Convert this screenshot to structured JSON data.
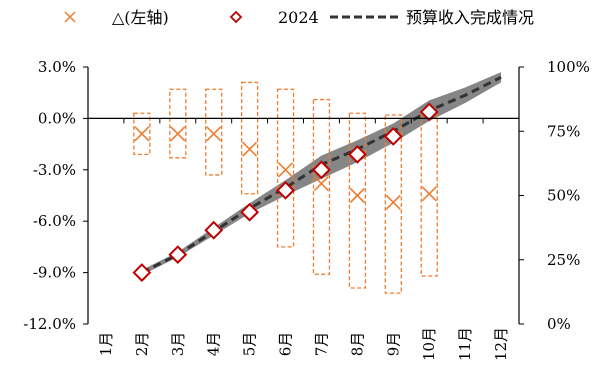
{
  "chart_data": {
    "type": "line",
    "title": "",
    "categories": [
      "1月",
      "2月",
      "3月",
      "4月",
      "5月",
      "6月",
      "7月",
      "8月",
      "9月",
      "10月",
      "11月",
      "12月"
    ],
    "left_axis": {
      "ylim": [
        -12,
        3
      ],
      "ticks": [
        3,
        0,
        -3,
        -6,
        -9,
        -12
      ],
      "tick_labels": [
        "3.0%",
        "0.0%",
        "-3.0%",
        "-6.0%",
        "-9.0%",
        "-12.0%"
      ]
    },
    "right_axis": {
      "ylim": [
        0,
        100
      ],
      "ticks": [
        100,
        75,
        50,
        25,
        0
      ],
      "tick_labels": [
        "100%",
        "75%",
        "50%",
        "25%",
        "0%"
      ]
    },
    "legend": {
      "placement": "top",
      "entries": [
        {
          "label": "",
          "marker": "x",
          "color": "#ED7D31"
        },
        {
          "label": "△(左轴)",
          "marker": "none",
          "color": "#000000"
        },
        {
          "label": "2024",
          "marker": "diamond",
          "color": "#C00000"
        },
        {
          "label": "预算收入完成情况",
          "marker": "dashed-line",
          "color": "#333333"
        }
      ]
    },
    "series": [
      {
        "name": "△(左轴)",
        "axis": "left",
        "marker": "x",
        "color": "#ED7D31",
        "x": [
          "2月",
          "3月",
          "4月",
          "5月",
          "6月",
          "7月",
          "8月",
          "9月",
          "10月"
        ],
        "values": [
          -0.9,
          -0.9,
          -0.9,
          -1.8,
          -3.0,
          -3.8,
          -4.5,
          -4.9,
          -4.4
        ]
      },
      {
        "name": "△ range",
        "axis": "left",
        "type": "box-outline",
        "color": "#ED7D31",
        "x": [
          "2月",
          "3月",
          "4月",
          "5月",
          "6月",
          "7月",
          "8月",
          "9月",
          "10月"
        ],
        "high": [
          0.3,
          1.7,
          1.7,
          2.1,
          1.7,
          1.1,
          0.3,
          0.2,
          0.2
        ],
        "low": [
          -2.1,
          -2.3,
          -3.3,
          -4.4,
          -7.5,
          -9.1,
          -9.9,
          -10.2,
          -9.2
        ]
      },
      {
        "name": "2024",
        "axis": "right",
        "marker": "diamond",
        "color": "#C00000",
        "x": [
          "2月",
          "3月",
          "4月",
          "5月",
          "6月",
          "7月",
          "8月",
          "9月",
          "10月"
        ],
        "values": [
          20,
          27,
          36.5,
          43.5,
          52,
          60,
          66,
          73,
          82.5
        ]
      },
      {
        "name": "预算收入完成情况",
        "axis": "right",
        "style": "dashed",
        "color": "#333333",
        "x": [
          "2月",
          "3月",
          "4月",
          "5月",
          "6月",
          "7月",
          "8月",
          "9月",
          "10月",
          "11月",
          "12月"
        ],
        "values": [
          20,
          27,
          36,
          45,
          53,
          62,
          68,
          75,
          83,
          89,
          96
        ]
      },
      {
        "name": "band",
        "axis": "right",
        "type": "band",
        "color": "#808080",
        "x": [
          "2月",
          "3月",
          "4月",
          "5月",
          "6月",
          "7月",
          "8月",
          "9月",
          "10月",
          "11月",
          "12月"
        ],
        "high": [
          21,
          28,
          37.5,
          47,
          56,
          65.5,
          71.5,
          78,
          87,
          92,
          98
        ],
        "low": [
          19,
          26,
          34.5,
          43,
          50,
          56.5,
          63,
          70.5,
          79,
          86,
          94
        ]
      }
    ]
  }
}
